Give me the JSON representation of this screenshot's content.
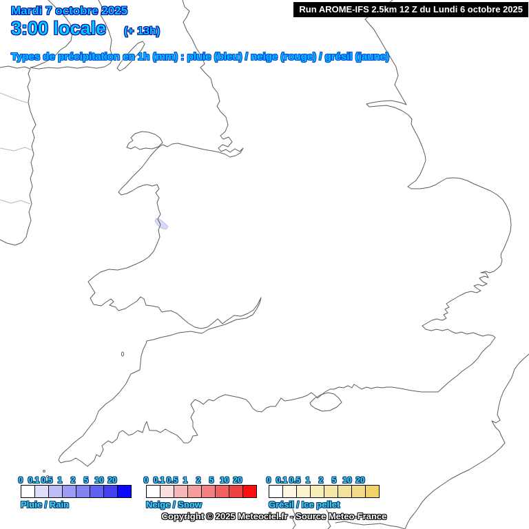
{
  "header": {
    "date_line": "Mardi 7 octobre 2025",
    "time_line": "3:00 locale",
    "time_offset": "(+ 13h)",
    "subtitle": "Types de précipitation en 1h (mm) : pluie (bleu) / neige (rouge) / grésil (jaune)",
    "run_info": "Run AROME-IFS 2.5km 12 Z du Lundi 6 octobre 2025"
  },
  "legends": [
    {
      "caption": "Pluie / Rain",
      "thresholds": [
        "0",
        "0.1",
        "0.5",
        "1",
        "2",
        "5",
        "10",
        "20"
      ],
      "colors": [
        "#ffffff",
        "#dedefa",
        "#bcbcf6",
        "#9c9cf6",
        "#8282f2",
        "#6262f2",
        "#4242f2",
        "#0a0aff"
      ]
    },
    {
      "caption": "Neige / Snow",
      "thresholds": [
        "0",
        "0.1",
        "0.5",
        "1",
        "2",
        "5",
        "10",
        "20"
      ],
      "colors": [
        "#ffffff",
        "#fbdede",
        "#f5b9b9",
        "#f59c9c",
        "#f28181",
        "#f06161",
        "#f04242",
        "#ff0d0d"
      ]
    },
    {
      "caption": "Grésil / Ice pellet",
      "thresholds": [
        "0",
        "0.1",
        "0.5",
        "1",
        "2",
        "5",
        "10",
        "20"
      ],
      "colors": [
        "#ffffff",
        "#fdf8e2",
        "#fbf2ce",
        "#f8ecb8",
        "#f6e6a6",
        "#f5e29a",
        "#f3dc88",
        "#f0d468"
      ]
    }
  ],
  "footer": {
    "copyright": "Copyright © 2025 Meteociel.fr - Source Meteo-France"
  },
  "map": {
    "region": "Angleterre / England - Wales",
    "patch_color": "#d9d9f7"
  },
  "colors": {
    "title_fill": "#00ccff",
    "title_outline": "#0000aa",
    "subtitle_fill": "#00c4ff",
    "subtitle_outline": "#0049e0",
    "legend_text_fill": "#49d6e2",
    "legend_text_outline": "#003a80",
    "copyright_fill": "#ffffff",
    "copyright_outline": "#000000",
    "run_bg": "#000000",
    "run_fg": "#ffffff",
    "coastline": "#5a5a5a",
    "border_line": "#b8b8b8"
  }
}
